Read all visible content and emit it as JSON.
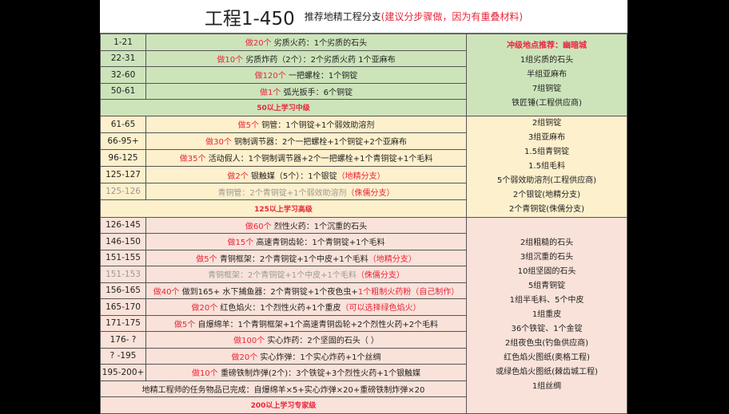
{
  "title": {
    "main": "工程1-450",
    "sub": "推荐地精工程分支",
    "note": "(建议分步骤做，因为有重叠材料)"
  },
  "colors": {
    "green": "#cde4bb",
    "yellow": "#fdf0cc",
    "pink": "#f9e2d9",
    "red": "#e8253a"
  },
  "sections": [
    {
      "rows": [
        {
          "level": "1-21",
          "segs": [
            {
              "t": "做20个 ",
              "c": "red"
            },
            {
              "t": "劣质火药：1个劣质的石头",
              "c": ""
            }
          ]
        },
        {
          "level": "22-31",
          "segs": [
            {
              "t": "做10个 ",
              "c": "red"
            },
            {
              "t": "劣质炸药（2个）：2个劣质火药 1个亚麻布",
              "c": ""
            }
          ]
        },
        {
          "level": "32-60",
          "segs": [
            {
              "t": "做120个 ",
              "c": "red"
            },
            {
              "t": "一把螺栓：1个铜锭",
              "c": ""
            }
          ]
        },
        {
          "level": "50-61",
          "segs": [
            {
              "t": "做1个 ",
              "c": "red"
            },
            {
              "t": "弧光扳手：6个铜锭",
              "c": ""
            }
          ]
        }
      ],
      "header": "50以上学习中级",
      "side": [
        "冲级地点推荐：幽暗城",
        "1组劣质的石头",
        "半组亚麻布",
        "7组铜锭",
        "铁匠锤(工程供应商)"
      ]
    },
    {
      "rows": [
        {
          "level": "61-65",
          "segs": [
            {
              "t": "做5个 ",
              "c": "red"
            },
            {
              "t": "铜管：1个铜锭+1个弱效助溶剂",
              "c": ""
            }
          ]
        },
        {
          "level": "66-95+",
          "segs": [
            {
              "t": "做30个 ",
              "c": "red"
            },
            {
              "t": "铜制调节器：2个一把螺栓+1个铜锭+2个亚麻布",
              "c": ""
            }
          ]
        },
        {
          "level": "96-125",
          "segs": [
            {
              "t": "做35个 ",
              "c": "red"
            },
            {
              "t": "活动假人：1个铜制调节器+2个一把螺栓+1个青铜锭+1个毛料",
              "c": ""
            }
          ]
        },
        {
          "level": "125-127",
          "segs": [
            {
              "t": "做2个 ",
              "c": "red"
            },
            {
              "t": "银触媒（5个）：1个银锭",
              "c": ""
            },
            {
              "t": "（地精分支）",
              "c": "red"
            }
          ]
        },
        {
          "level": "125-126",
          "gray": true,
          "segs": [
            {
              "t": "青铜管：2个青铜锭+1个弱效助溶剂",
              "c": "gray"
            },
            {
              "t": "（侏儒分支）",
              "c": "red"
            }
          ]
        }
      ],
      "header": "125以上学习高级",
      "side": [
        "2组铜锭",
        "3组亚麻布",
        "1.5组青铜锭",
        "1.5组毛料",
        "5个弱效助溶剂(工程供应商)",
        "2个银锭(地精分支)",
        "2个青铜锭(侏儒分支)"
      ]
    },
    {
      "rows": [
        {
          "level": "126-145",
          "segs": [
            {
              "t": "做60个 ",
              "c": "red"
            },
            {
              "t": "烈性火药：1个沉重的石头",
              "c": ""
            }
          ]
        },
        {
          "level": "146-150",
          "segs": [
            {
              "t": "做15个 ",
              "c": "red"
            },
            {
              "t": "高速青铜齿轮：1个青铜锭+1个毛料",
              "c": ""
            }
          ]
        },
        {
          "level": "151-155",
          "segs": [
            {
              "t": "做5个 ",
              "c": "red"
            },
            {
              "t": "青铜框架：2个青铜锭+1个中皮+1个毛料",
              "c": ""
            },
            {
              "t": "（地精分支）",
              "c": "red"
            }
          ]
        },
        {
          "level": "151-153",
          "gray": true,
          "segs": [
            {
              "t": "青铜框架：2个青铜锭+1个中皮+1个毛料",
              "c": "gray"
            },
            {
              "t": "（侏儒分支）",
              "c": "red"
            }
          ]
        },
        {
          "level": "156-165",
          "segs": [
            {
              "t": "做40个 ",
              "c": "red"
            },
            {
              "t": "做到165+ 水下捕鱼器：2个青铜锭+1个夜色虫+",
              "c": ""
            },
            {
              "t": "1个粗制火药粉（自己制作）",
              "c": "red"
            }
          ]
        },
        {
          "level": "165-170",
          "segs": [
            {
              "t": "做20个 ",
              "c": "red"
            },
            {
              "t": "红色焰火：1个烈性火药+1个重皮",
              "c": ""
            },
            {
              "t": "（可以选择绿色焰火）",
              "c": "red"
            }
          ]
        },
        {
          "level": "171-175",
          "segs": [
            {
              "t": "做5个 ",
              "c": "red"
            },
            {
              "t": "自爆绵羊：1个青铜框架+1个高速青铜齿轮+2个烈性火药+2个毛料",
              "c": ""
            }
          ]
        },
        {
          "level": "176- ?",
          "segs": [
            {
              "t": "做100个 ",
              "c": "red"
            },
            {
              "t": "实心炸药：2个坚固的石头（ ）",
              "c": ""
            }
          ]
        },
        {
          "level": "? -195",
          "segs": [
            {
              "t": "做20个 ",
              "c": "red"
            },
            {
              "t": "实心炸弹：1个实心炸药+1个丝绸",
              "c": ""
            }
          ]
        },
        {
          "level": "195-200+",
          "segs": [
            {
              "t": "做10个 ",
              "c": "red"
            },
            {
              "t": "重磅铁制炸弹(2个)：3个铁锭+3个烈性火药+1个银触媒",
              "c": ""
            }
          ]
        }
      ],
      "task": "地精工程师的任务物品已完成：自爆绵羊×5+实心炸弹×20+重磅铁制炸弹×20",
      "header": "200以上学习专家级",
      "side": [
        "2组粗糙的石头",
        "3组沉重的石头",
        "10组坚固的石头",
        "5组青铜锭",
        "1组半毛料、5个中皮",
        "1组重皮",
        "36个铁锭、1个金锭",
        "2组夜色虫(钓鱼供应商)",
        "红色焰火图纸(奥格工程)",
        "或绿色焰火图纸(棘齿城工程)",
        "1组丝绸"
      ]
    }
  ]
}
